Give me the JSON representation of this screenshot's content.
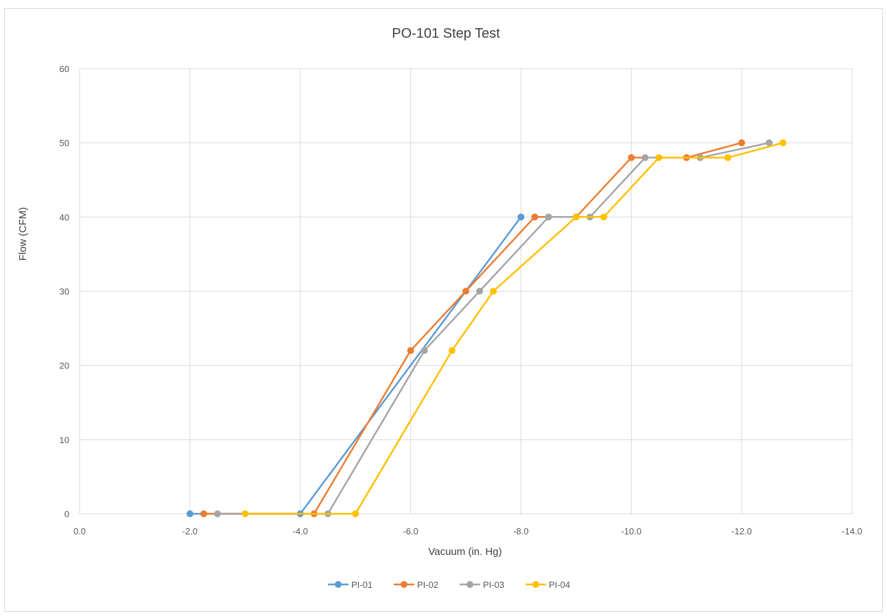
{
  "chart_data": {
    "type": "line",
    "title": "PO-101 Step Test",
    "xlabel": "Vacuum (in. Hg)",
    "ylabel": "Flow (CFM)",
    "xlim": [
      0,
      -14
    ],
    "ylim": [
      0,
      60
    ],
    "x_ticks": [
      "0.0",
      "-2.0",
      "-4.0",
      "-6.0",
      "-8.0",
      "-10.0",
      "-12.0",
      "-14.0"
    ],
    "y_ticks": [
      "0",
      "10",
      "20",
      "30",
      "40",
      "50",
      "60"
    ],
    "x_tick_values": [
      0,
      -2,
      -4,
      -6,
      -8,
      -10,
      -12,
      -14
    ],
    "y_tick_values": [
      0,
      10,
      20,
      30,
      40,
      50,
      60
    ],
    "grid": true,
    "legend_position": "bottom",
    "series": [
      {
        "name": "PI-01",
        "color": "#5b9bd5",
        "points": [
          [
            -2.0,
            0
          ],
          [
            -4.0,
            0
          ],
          [
            -8.0,
            40
          ]
        ]
      },
      {
        "name": "PI-02",
        "color": "#ed7d31",
        "points": [
          [
            -2.25,
            0
          ],
          [
            -4.25,
            0
          ],
          [
            -6.0,
            22
          ],
          [
            -7.0,
            30
          ],
          [
            -8.25,
            40
          ],
          [
            -9.0,
            40
          ],
          [
            -10.0,
            48
          ],
          [
            -11.0,
            48
          ],
          [
            -12.0,
            50
          ]
        ]
      },
      {
        "name": "PI-03",
        "color": "#a5a5a5",
        "points": [
          [
            -2.5,
            0
          ],
          [
            -4.5,
            0
          ],
          [
            -6.25,
            22
          ],
          [
            -7.25,
            30
          ],
          [
            -8.5,
            40
          ],
          [
            -9.25,
            40
          ],
          [
            -10.25,
            48
          ],
          [
            -11.25,
            48
          ],
          [
            -12.5,
            50
          ]
        ]
      },
      {
        "name": "PI-04",
        "color": "#ffc000",
        "points": [
          [
            -3.0,
            0
          ],
          [
            -5.0,
            0
          ],
          [
            -6.75,
            22
          ],
          [
            -7.5,
            30
          ],
          [
            -9.0,
            40
          ],
          [
            -9.5,
            40
          ],
          [
            -10.5,
            48
          ],
          [
            -11.75,
            48
          ],
          [
            -12.75,
            50
          ]
        ]
      }
    ]
  }
}
